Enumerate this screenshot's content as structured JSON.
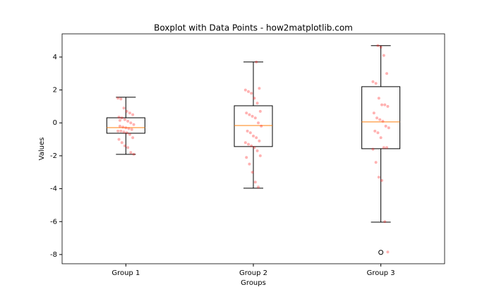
{
  "chart_data": {
    "type": "box",
    "title": "Boxplot with Data Points - how2matplotlib.com",
    "x_label": "Groups",
    "y_label": "Values",
    "categories": [
      "Group 1",
      "Group 2",
      "Group 3"
    ],
    "boxes": [
      {
        "whislo": -1.91,
        "q1": -0.63,
        "med": -0.29,
        "q3": 0.31,
        "whishi": 1.56,
        "fliers": []
      },
      {
        "whislo": -3.97,
        "q1": -1.44,
        "med": -0.16,
        "q3": 1.04,
        "whishi": 3.7,
        "fliers": []
      },
      {
        "whislo": -6.03,
        "q1": -1.57,
        "med": 0.06,
        "q3": 2.2,
        "whishi": 4.69,
        "fliers": [
          -7.87
        ]
      }
    ],
    "points": [
      [
        1.5,
        1.45,
        0.9,
        0.7,
        0.6,
        0.5,
        0.35,
        0.3,
        0.2,
        0.1,
        0.0,
        -0.1,
        -0.2,
        -0.25,
        -0.3,
        -0.35,
        -0.4,
        -0.5,
        -0.5,
        -0.55,
        -0.6,
        -0.7,
        -0.9,
        -1.0,
        -1.2,
        -1.4,
        -1.5,
        -1.8,
        -1.9,
        0.15
      ],
      [
        3.7,
        2.1,
        2.0,
        1.9,
        1.8,
        1.5,
        1.2,
        0.7,
        0.6,
        0.5,
        0.4,
        0.3,
        0.0,
        -0.2,
        -0.5,
        -0.6,
        -0.8,
        -0.9,
        -1.1,
        -1.2,
        -1.3,
        -1.4,
        -1.5,
        -1.7,
        -2.0,
        -2.1,
        -2.5,
        -3.0,
        -3.6,
        -3.9
      ],
      [
        4.7,
        4.6,
        4.1,
        3.0,
        2.5,
        2.4,
        1.5,
        1.1,
        1.1,
        1.0,
        0.6,
        0.3,
        0.2,
        0.1,
        -0.2,
        -0.3,
        -0.5,
        -0.6,
        -0.9,
        -1.5,
        -1.5,
        -1.6,
        -2.4,
        -3.3,
        -3.5,
        -6.0,
        -7.85
      ]
    ],
    "box_color": "#000000",
    "median_color": "#ff7f0e",
    "point_color": "#ff0000",
    "ylim": [
      -8.56,
      5.41
    ],
    "yticks": [
      -8,
      -6,
      -4,
      -2,
      0,
      2,
      4
    ],
    "grid": false
  }
}
